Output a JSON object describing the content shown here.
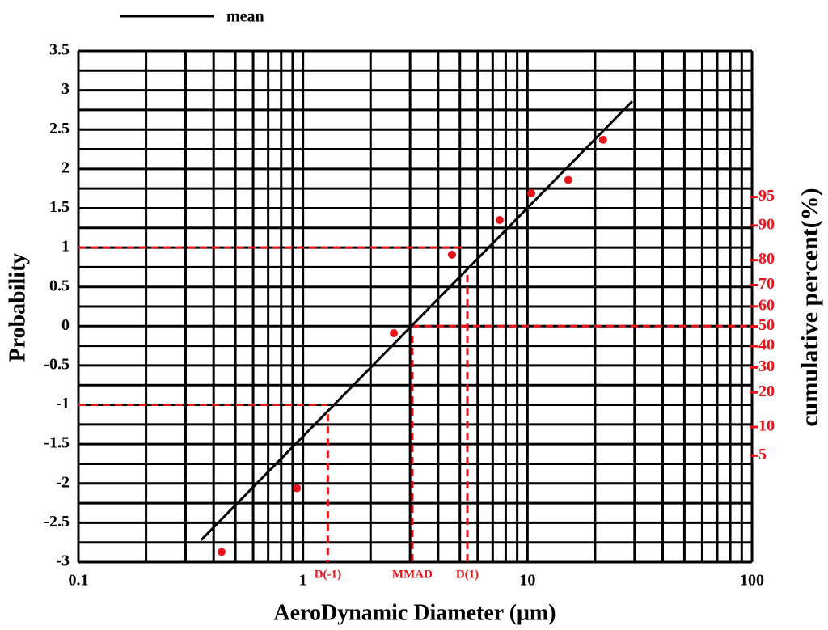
{
  "chart_data": {
    "type": "scatter",
    "xlabel": "AeroDynamic Diameter (μm)",
    "ylabel": "Probability",
    "y2label": "cumulative percent(%)",
    "xscale": "log",
    "xlim": [
      0.1,
      100
    ],
    "xticks": [
      0.1,
      1,
      10,
      100
    ],
    "xminorticks": [
      0.2,
      0.3,
      0.4,
      0.5,
      0.6,
      0.7,
      0.8,
      0.9,
      2,
      3,
      4,
      5,
      6,
      7,
      8,
      9,
      20,
      30,
      40,
      50,
      60,
      70,
      80,
      90
    ],
    "ylim": [
      -3,
      3.5
    ],
    "yticks": [
      -3,
      -2.5,
      -2,
      -1.5,
      -1,
      -0.5,
      0,
      0.5,
      1,
      1.5,
      2,
      2.5,
      3,
      3.5
    ],
    "yminorticks": [
      -2.75,
      -2.25,
      -1.75,
      -1.25,
      -0.75,
      -0.25,
      0.25,
      0.75,
      1.25,
      1.75,
      2.25,
      2.75,
      3.25
    ],
    "grid": true,
    "y2scale": "probit",
    "y2lim": [
      0.135,
      99.977
    ],
    "y2ticks": [
      5,
      10,
      20,
      30,
      40,
      50,
      60,
      70,
      80,
      90,
      95
    ],
    "y2color": "#e8141c",
    "series": [
      {
        "name": "mean",
        "type": "line",
        "color": "#000000",
        "x": [
          0.352,
          29.3
        ],
        "values": [
          -2.72,
          2.86
        ]
      },
      {
        "type": "scatter",
        "color": "#e8141c",
        "x": [
          0.434,
          0.94,
          2.54,
          4.61,
          7.52,
          10.4,
          15.2,
          21.7
        ],
        "values": [
          -2.87,
          -2.06,
          -0.09,
          0.91,
          1.35,
          1.69,
          1.86,
          2.37
        ]
      }
    ],
    "reference_lines": {
      "color": "#e8141c",
      "lines": [
        {
          "x": [
            0.1,
            5.13
          ],
          "y": [
            1,
            1
          ]
        },
        {
          "x": [
            3.07,
            100
          ],
          "y": [
            0,
            0
          ]
        },
        {
          "x": [
            0.1,
            1.29
          ],
          "y": [
            -1,
            -1
          ]
        },
        {
          "x": [
            1.29,
            1.29
          ],
          "y": [
            -1.12,
            -3
          ]
        },
        {
          "x": [
            3.07,
            3.07
          ],
          "y": [
            -0.12,
            -3
          ]
        },
        {
          "x": [
            5.4,
            5.4
          ],
          "y": [
            0.65,
            -3
          ]
        }
      ]
    },
    "annotations": [
      {
        "text": "D(-1)",
        "x": 1.29
      },
      {
        "text": "MMAD",
        "x": 3.07
      },
      {
        "text": "D(1)",
        "x": 5.4
      }
    ]
  }
}
